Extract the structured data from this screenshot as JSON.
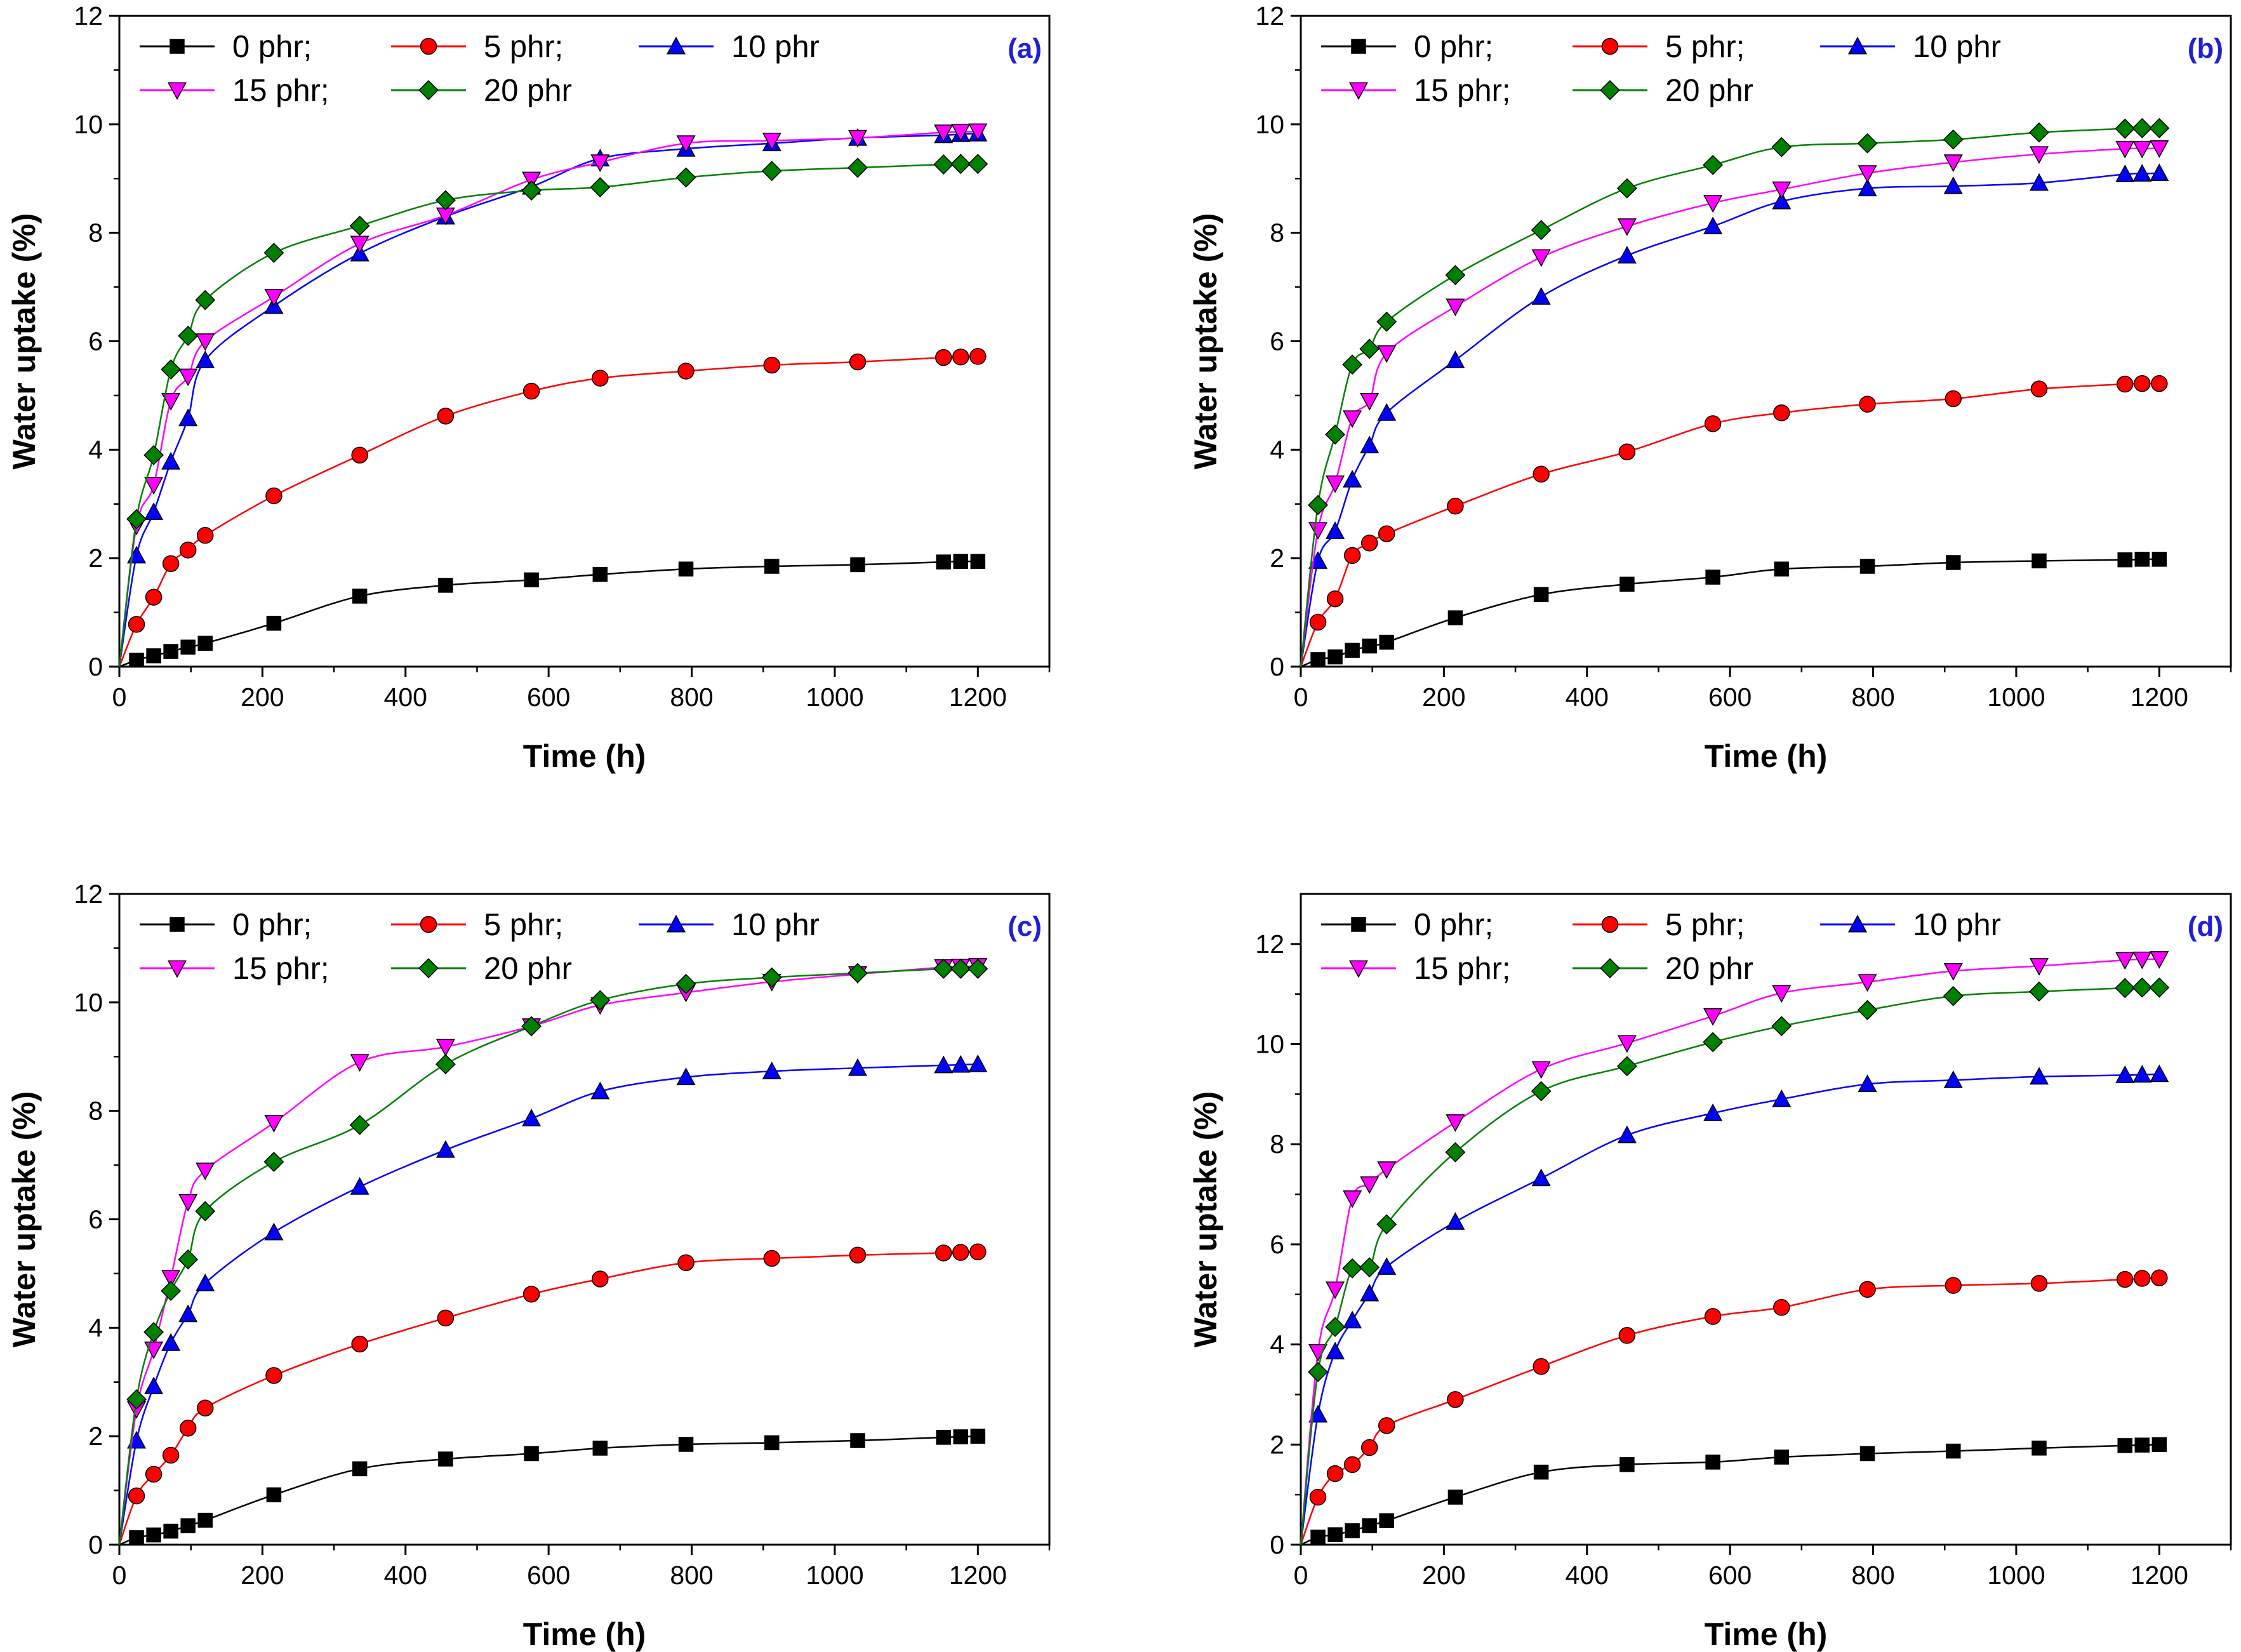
{
  "figure": {
    "legend_labels": [
      "0 phr;",
      "5 phr;",
      "10 phr",
      "15 phr;",
      "20 phr"
    ],
    "series_colors": [
      "#000000",
      "#ff0000",
      "#0000ff",
      "#ff00ff",
      "#008000"
    ],
    "marker_shapes": [
      "square",
      "circle",
      "triangle-up",
      "triangle-down",
      "diamond"
    ]
  },
  "chart_data": [
    {
      "type": "line",
      "panel_label": "(a)",
      "xlabel": "Time (h)",
      "ylabel": "Water uptake (%)",
      "xlim": [
        0,
        1300
      ],
      "ylim": [
        0,
        12
      ],
      "xticks": [
        0,
        200,
        400,
        600,
        800,
        1000,
        1200
      ],
      "yticks": [
        0,
        2,
        4,
        6,
        8,
        10,
        12
      ],
      "legend_position": "top-left",
      "x": [
        0,
        24,
        48,
        72,
        96,
        120,
        216,
        336,
        456,
        576,
        672,
        792,
        912,
        1032,
        1152,
        1176,
        1200
      ],
      "series": [
        {
          "name": "0 phr;",
          "values": [
            0,
            0.12,
            0.2,
            0.28,
            0.36,
            0.43,
            0.8,
            1.3,
            1.5,
            1.6,
            1.7,
            1.8,
            1.85,
            1.88,
            1.93,
            1.94,
            1.94
          ]
        },
        {
          "name": "5 phr;",
          "values": [
            0,
            0.78,
            1.28,
            1.9,
            2.15,
            2.42,
            3.15,
            3.9,
            4.62,
            5.08,
            5.32,
            5.45,
            5.56,
            5.62,
            5.7,
            5.71,
            5.72
          ]
        },
        {
          "name": "10 phr",
          "values": [
            0,
            2.05,
            2.85,
            3.78,
            4.58,
            5.65,
            6.65,
            7.62,
            8.3,
            8.85,
            9.37,
            9.55,
            9.65,
            9.75,
            9.8,
            9.82,
            9.83
          ]
        },
        {
          "name": "15 phr;",
          "values": [
            0,
            2.6,
            3.35,
            4.9,
            5.35,
            6.0,
            6.82,
            7.8,
            8.32,
            8.98,
            9.3,
            9.65,
            9.7,
            9.75,
            9.85,
            9.86,
            9.87
          ]
        },
        {
          "name": "20 phr",
          "values": [
            0,
            2.72,
            3.9,
            5.48,
            6.1,
            6.76,
            7.63,
            8.13,
            8.6,
            8.78,
            8.84,
            9.02,
            9.14,
            9.2,
            9.26,
            9.27,
            9.27
          ]
        }
      ]
    },
    {
      "type": "line",
      "panel_label": "(b)",
      "xlabel": "Time (h)",
      "ylabel": "Water uptake (%)",
      "xlim": [
        0,
        1300
      ],
      "ylim": [
        0,
        12
      ],
      "xticks": [
        0,
        200,
        400,
        600,
        800,
        1000,
        1200
      ],
      "yticks": [
        0,
        2,
        4,
        6,
        8,
        10,
        12
      ],
      "legend_position": "top-left",
      "x": [
        0,
        24,
        48,
        72,
        96,
        120,
        216,
        336,
        456,
        576,
        672,
        792,
        912,
        1032,
        1152,
        1176,
        1200
      ],
      "series": [
        {
          "name": "0 phr;",
          "values": [
            0,
            0.13,
            0.18,
            0.3,
            0.38,
            0.45,
            0.9,
            1.33,
            1.52,
            1.65,
            1.8,
            1.85,
            1.92,
            1.95,
            1.97,
            1.98,
            1.98
          ]
        },
        {
          "name": "5 phr;",
          "values": [
            0,
            0.82,
            1.25,
            2.05,
            2.28,
            2.45,
            2.96,
            3.55,
            3.96,
            4.48,
            4.68,
            4.84,
            4.94,
            5.12,
            5.21,
            5.22,
            5.22
          ]
        },
        {
          "name": "10 phr",
          "values": [
            0,
            1.95,
            2.5,
            3.45,
            4.08,
            4.68,
            5.65,
            6.82,
            7.58,
            8.12,
            8.58,
            8.82,
            8.86,
            8.92,
            9.08,
            9.09,
            9.1
          ]
        },
        {
          "name": "15 phr;",
          "values": [
            0,
            2.52,
            3.38,
            4.58,
            4.9,
            5.78,
            6.64,
            7.55,
            8.12,
            8.55,
            8.8,
            9.1,
            9.3,
            9.45,
            9.55,
            9.55,
            9.56
          ]
        },
        {
          "name": "20 phr",
          "values": [
            0,
            2.98,
            4.28,
            5.57,
            5.86,
            6.36,
            7.22,
            8.05,
            8.82,
            9.25,
            9.58,
            9.65,
            9.72,
            9.85,
            9.92,
            9.93,
            9.93
          ]
        }
      ]
    },
    {
      "type": "line",
      "panel_label": "(c)",
      "xlabel": "Time (h)",
      "ylabel": "Water uptake (%)",
      "xlim": [
        0,
        1300
      ],
      "ylim": [
        0,
        12
      ],
      "xticks": [
        0,
        200,
        400,
        600,
        800,
        1000,
        1200
      ],
      "yticks": [
        0,
        2,
        4,
        6,
        8,
        10,
        12
      ],
      "legend_position": "top-left",
      "x": [
        0,
        24,
        48,
        72,
        96,
        120,
        216,
        336,
        456,
        576,
        672,
        792,
        912,
        1032,
        1152,
        1176,
        1200
      ],
      "series": [
        {
          "name": "0 phr;",
          "values": [
            0,
            0.13,
            0.18,
            0.25,
            0.35,
            0.45,
            0.92,
            1.4,
            1.58,
            1.68,
            1.78,
            1.85,
            1.88,
            1.92,
            1.98,
            1.99,
            2.0
          ]
        },
        {
          "name": "5 phr;",
          "values": [
            0,
            0.9,
            1.3,
            1.65,
            2.15,
            2.52,
            3.12,
            3.7,
            4.18,
            4.62,
            4.9,
            5.2,
            5.28,
            5.34,
            5.38,
            5.39,
            5.4
          ]
        },
        {
          "name": "10 phr",
          "values": [
            0,
            1.92,
            2.92,
            3.72,
            4.25,
            4.82,
            5.76,
            6.6,
            7.28,
            7.86,
            8.36,
            8.62,
            8.73,
            8.79,
            8.84,
            8.85,
            8.86
          ]
        },
        {
          "name": "15 phr;",
          "values": [
            0,
            2.5,
            3.6,
            4.92,
            6.32,
            6.9,
            7.78,
            8.9,
            9.18,
            9.56,
            9.95,
            10.18,
            10.38,
            10.52,
            10.65,
            10.66,
            10.67
          ]
        },
        {
          "name": "20 phr",
          "values": [
            0,
            2.68,
            3.92,
            4.68,
            5.26,
            6.15,
            7.06,
            7.74,
            8.86,
            9.56,
            10.04,
            10.34,
            10.46,
            10.54,
            10.62,
            10.62,
            10.62
          ]
        }
      ]
    },
    {
      "type": "line",
      "panel_label": "(d)",
      "xlabel": "Time (h)",
      "ylabel": "Water uptake (%)",
      "xlim": [
        0,
        1300
      ],
      "ylim": [
        0,
        13
      ],
      "xticks": [
        0,
        200,
        400,
        600,
        800,
        1000,
        1200
      ],
      "yticks": [
        0,
        2,
        4,
        6,
        8,
        10,
        12
      ],
      "legend_position": "top-left",
      "x": [
        0,
        24,
        48,
        72,
        96,
        120,
        216,
        336,
        456,
        576,
        672,
        792,
        912,
        1032,
        1152,
        1176,
        1200
      ],
      "series": [
        {
          "name": "0 phr;",
          "values": [
            0,
            0.15,
            0.2,
            0.28,
            0.38,
            0.48,
            0.95,
            1.45,
            1.6,
            1.65,
            1.75,
            1.82,
            1.87,
            1.93,
            1.98,
            1.99,
            2.0
          ]
        },
        {
          "name": "5 phr;",
          "values": [
            0,
            0.95,
            1.42,
            1.6,
            1.94,
            2.38,
            2.9,
            3.56,
            4.18,
            4.56,
            4.74,
            5.1,
            5.18,
            5.22,
            5.3,
            5.32,
            5.33
          ]
        },
        {
          "name": "10 phr",
          "values": [
            0,
            2.6,
            3.86,
            4.48,
            5.02,
            5.55,
            6.45,
            7.32,
            8.18,
            8.62,
            8.9,
            9.2,
            9.28,
            9.35,
            9.38,
            9.39,
            9.4
          ]
        },
        {
          "name": "15 phr;",
          "values": [
            0,
            3.85,
            5.1,
            6.92,
            7.2,
            7.5,
            8.44,
            9.5,
            10.02,
            10.56,
            11.02,
            11.24,
            11.46,
            11.56,
            11.68,
            11.69,
            11.7
          ]
        },
        {
          "name": "20 phr",
          "values": [
            0,
            3.45,
            4.35,
            5.52,
            5.54,
            6.4,
            7.84,
            9.06,
            9.56,
            10.04,
            10.36,
            10.68,
            10.96,
            11.05,
            11.12,
            11.13,
            11.13
          ]
        }
      ]
    }
  ]
}
